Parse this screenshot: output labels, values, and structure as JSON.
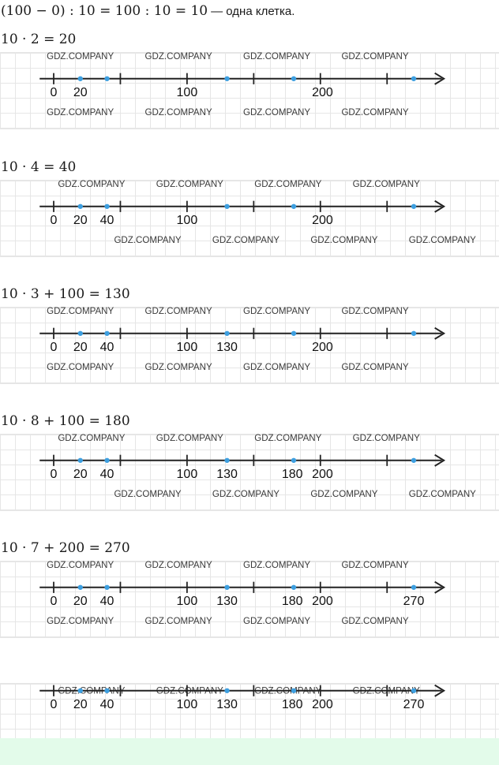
{
  "header": {
    "formula": "(100 − 0) : 10 = 100 : 10 = 10",
    "note": "— одна клетка."
  },
  "watermark": "GDZ.COMPANY",
  "colors": {
    "point": "#3d9fe0",
    "axis": "#222222",
    "grid": "#e6e6e6",
    "footer": "#e3fbea"
  },
  "steps": [
    {
      "equation": "10 · 2 = 20",
      "labels": [
        {
          "value": 0,
          "text": "0"
        },
        {
          "value": 20,
          "text": "20"
        },
        {
          "value": 100,
          "text": "100"
        },
        {
          "value": 200,
          "text": "200"
        }
      ]
    },
    {
      "equation": "10 · 4 = 40",
      "labels": [
        {
          "value": 0,
          "text": "0"
        },
        {
          "value": 20,
          "text": "20"
        },
        {
          "value": 40,
          "text": "40"
        },
        {
          "value": 100,
          "text": "100"
        },
        {
          "value": 200,
          "text": "200"
        }
      ]
    },
    {
      "equation": "10 · 3 + 100 = 130",
      "labels": [
        {
          "value": 0,
          "text": "0"
        },
        {
          "value": 20,
          "text": "20"
        },
        {
          "value": 40,
          "text": "40"
        },
        {
          "value": 100,
          "text": "100"
        },
        {
          "value": 130,
          "text": "130"
        },
        {
          "value": 200,
          "text": "200"
        }
      ]
    },
    {
      "equation": "10 · 8 + 100 = 180",
      "labels": [
        {
          "value": 0,
          "text": "0"
        },
        {
          "value": 20,
          "text": "20"
        },
        {
          "value": 40,
          "text": "40"
        },
        {
          "value": 100,
          "text": "100"
        },
        {
          "value": 130,
          "text": "130"
        },
        {
          "value": 180,
          "text": "180"
        },
        {
          "value": 200,
          "text": "200"
        }
      ]
    },
    {
      "equation": "10 · 7 + 200 = 270",
      "labels": [
        {
          "value": 0,
          "text": "0"
        },
        {
          "value": 20,
          "text": "20"
        },
        {
          "value": 40,
          "text": "40"
        },
        {
          "value": 100,
          "text": "100"
        },
        {
          "value": 130,
          "text": "130"
        },
        {
          "value": 180,
          "text": "180"
        },
        {
          "value": 200,
          "text": "200"
        },
        {
          "value": 270,
          "text": "270"
        }
      ]
    },
    {
      "equation": "",
      "labels": [
        {
          "value": 0,
          "text": "0"
        },
        {
          "value": 20,
          "text": "20"
        },
        {
          "value": 40,
          "text": "40"
        },
        {
          "value": 100,
          "text": "100"
        },
        {
          "value": 130,
          "text": "130"
        },
        {
          "value": 180,
          "text": "180"
        },
        {
          "value": 200,
          "text": "200"
        },
        {
          "value": 270,
          "text": "270"
        }
      ]
    }
  ],
  "number_line": {
    "ticks": [
      0,
      50,
      100,
      150,
      200,
      250
    ],
    "points": [
      20,
      40,
      130,
      180,
      270
    ]
  }
}
